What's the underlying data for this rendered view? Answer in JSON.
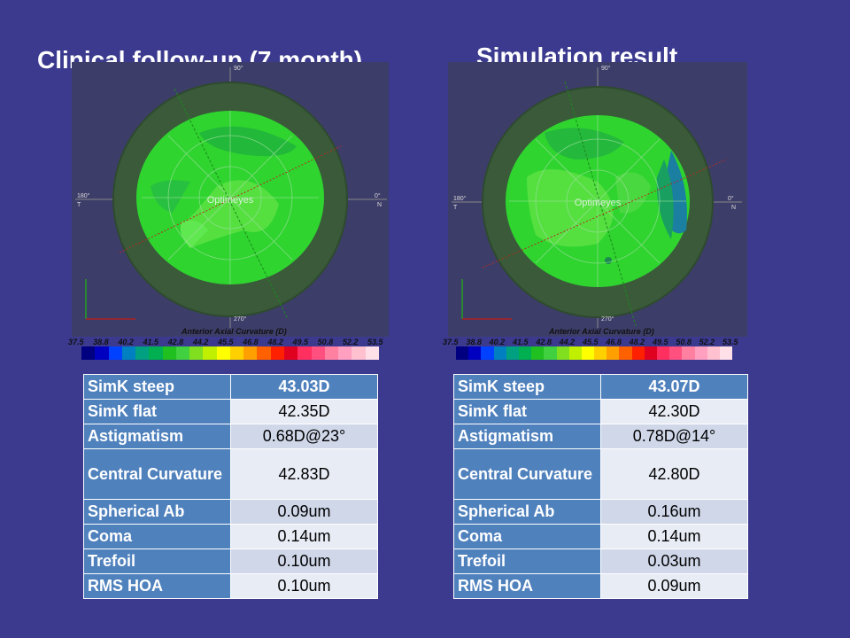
{
  "left": {
    "title": "Clinical follow-up (7 month)",
    "map": {
      "axis_title": "Anterior Axial Curvature  (D)",
      "label_90": "90°",
      "label_180": "180°",
      "label_0": "0°",
      "label_270": "270°",
      "label_T": "T",
      "label_N": "N",
      "watermark": "Optimeyes"
    },
    "table": [
      {
        "label": "SimK steep",
        "value": "43.03D"
      },
      {
        "label": "SimK flat",
        "value": "42.35D"
      },
      {
        "label": "Astigmatism",
        "value": "0.68D@23°"
      },
      {
        "label": "Central Curvature",
        "value": "42.83D"
      },
      {
        "label": "Spherical Ab",
        "value": "0.09um"
      },
      {
        "label": "Coma",
        "value": "0.14um"
      },
      {
        "label": "Trefoil",
        "value": "0.10um"
      },
      {
        "label": "RMS HOA",
        "value": "0.10um"
      }
    ]
  },
  "right": {
    "title": "Simulation result",
    "map": {
      "axis_title": "Anterior Axial Curvature  (D)",
      "label_90": "90°",
      "label_180": "180°",
      "label_0": "0°",
      "label_270": "270°",
      "label_T": "T",
      "label_N": "N",
      "watermark": "Optimeyes"
    },
    "table": [
      {
        "label": "SimK steep",
        "value": "43.07D"
      },
      {
        "label": "SimK flat",
        "value": "42.30D"
      },
      {
        "label": "Astigmatism",
        "value": "0.78D@14°"
      },
      {
        "label": "Central Curvature",
        "value": "42.80D"
      },
      {
        "label": "Spherical Ab",
        "value": "0.16um"
      },
      {
        "label": "Coma",
        "value": "0.14um"
      },
      {
        "label": "Trefoil",
        "value": "0.03um"
      },
      {
        "label": "RMS HOA",
        "value": "0.09um"
      }
    ]
  },
  "scale_ticks": [
    "37.5",
    "38.8",
    "40.2",
    "41.5",
    "42.8",
    "44.2",
    "45.5",
    "46.8",
    "48.2",
    "49.5",
    "50.8",
    "52.2",
    "53.5"
  ],
  "scale_colors": [
    "#000080",
    "#0000c0",
    "#0040ff",
    "#0080c0",
    "#00a080",
    "#00b050",
    "#20c020",
    "#40d040",
    "#80e020",
    "#c0f000",
    "#ffff00",
    "#ffd000",
    "#ffa000",
    "#ff6000",
    "#ff2000",
    "#e00020",
    "#ff3060",
    "#ff5080",
    "#ff80a0",
    "#ffa0c0",
    "#ffc0d0",
    "#ffe0e8"
  ],
  "colors": {
    "background": "#3b3a8e",
    "header_cell": "#4f81bd",
    "value_cell_a": "#cfd7e9",
    "value_cell_b": "#e8ecf5"
  }
}
